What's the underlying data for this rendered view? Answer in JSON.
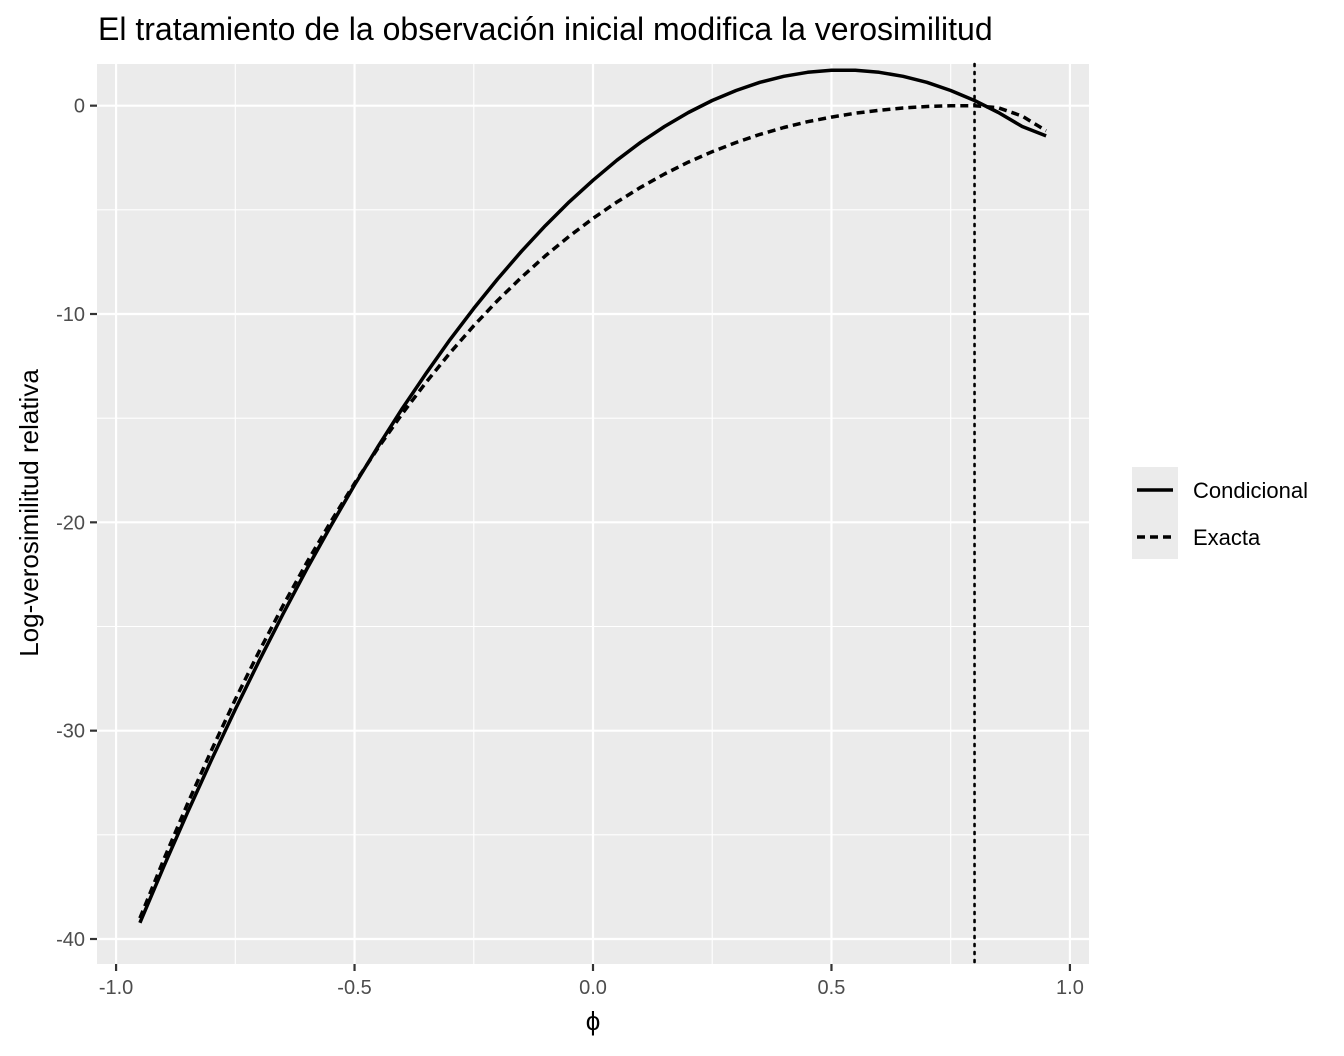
{
  "chart_data": {
    "type": "line",
    "title": "El tratamiento de la observación inicial modifica la verosimilitud",
    "xlabel": "ϕ",
    "ylabel": "Log-verosimilitud relativa",
    "xlim": [
      -1.04,
      1.04
    ],
    "ylim": [
      -41.2,
      2.0
    ],
    "x_ticks": [
      -1.0,
      -0.5,
      0.0,
      0.5,
      1.0
    ],
    "x_tick_labels": [
      "-1.0",
      "-0.5",
      "0.0",
      "0.5",
      "1.0"
    ],
    "y_ticks": [
      0,
      -10,
      -20,
      -30,
      -40
    ],
    "y_tick_labels": [
      "0",
      "-10",
      "-20",
      "-30",
      "-40"
    ],
    "x_minor": [
      -0.75,
      -0.25,
      0.25,
      0.75
    ],
    "y_minor": [
      -5,
      -15,
      -25,
      -35
    ],
    "grid": true,
    "panel_background": "#ebebeb",
    "grid_color": "#ffffff",
    "line_color": "#000000",
    "reference_line": {
      "x": 0.8,
      "style": "dotted"
    },
    "legend": {
      "position": "right",
      "entries": [
        {
          "label": "Condicional",
          "style": "solid"
        },
        {
          "label": "Exacta",
          "style": "dashed"
        }
      ]
    },
    "series": [
      {
        "name": "Condicional",
        "style": "solid",
        "x": [
          -0.95,
          -0.9,
          -0.85,
          -0.8,
          -0.75,
          -0.7,
          -0.65,
          -0.6,
          -0.55,
          -0.5,
          -0.45,
          -0.4,
          -0.35,
          -0.3,
          -0.25,
          -0.2,
          -0.15,
          -0.1,
          -0.05,
          0.0,
          0.05,
          0.1,
          0.15,
          0.2,
          0.25,
          0.3,
          0.35,
          0.4,
          0.45,
          0.5,
          0.55,
          0.6,
          0.65,
          0.7,
          0.75,
          0.8,
          0.85,
          0.9,
          0.95
        ],
        "y": [
          -39.22,
          -36.52,
          -33.92,
          -31.4,
          -28.98,
          -26.64,
          -24.4,
          -22.24,
          -20.18,
          -18.21,
          -16.33,
          -14.54,
          -12.85,
          -11.24,
          -9.73,
          -8.32,
          -6.99,
          -5.76,
          -4.62,
          -3.58,
          -2.62,
          -1.76,
          -1.0,
          -0.33,
          0.25,
          0.73,
          1.12,
          1.41,
          1.6,
          1.7,
          1.7,
          1.6,
          1.41,
          1.12,
          0.73,
          0.25,
          -0.33,
          -1.0,
          -1.45
        ]
      },
      {
        "name": "Exacta",
        "style": "dashed",
        "x": [
          -0.95,
          -0.9,
          -0.85,
          -0.8,
          -0.75,
          -0.7,
          -0.65,
          -0.6,
          -0.55,
          -0.5,
          -0.45,
          -0.4,
          -0.35,
          -0.3,
          -0.25,
          -0.2,
          -0.15,
          -0.1,
          -0.05,
          0.0,
          0.05,
          0.1,
          0.15,
          0.2,
          0.25,
          0.3,
          0.35,
          0.4,
          0.45,
          0.5,
          0.55,
          0.6,
          0.65,
          0.7,
          0.75,
          0.8,
          0.85,
          0.9,
          0.95
        ],
        "y": [
          -39.0,
          -36.18,
          -33.5,
          -30.94,
          -28.5,
          -26.19,
          -24.0,
          -21.93,
          -19.98,
          -18.13,
          -16.41,
          -14.79,
          -13.28,
          -11.87,
          -10.56,
          -9.35,
          -8.24,
          -7.21,
          -6.27,
          -5.41,
          -4.63,
          -3.92,
          -3.28,
          -2.71,
          -2.21,
          -1.77,
          -1.38,
          -1.05,
          -0.77,
          -0.55,
          -0.36,
          -0.22,
          -0.11,
          -0.04,
          0.0,
          0.0,
          -0.1,
          -0.5,
          -1.2
        ]
      }
    ]
  }
}
